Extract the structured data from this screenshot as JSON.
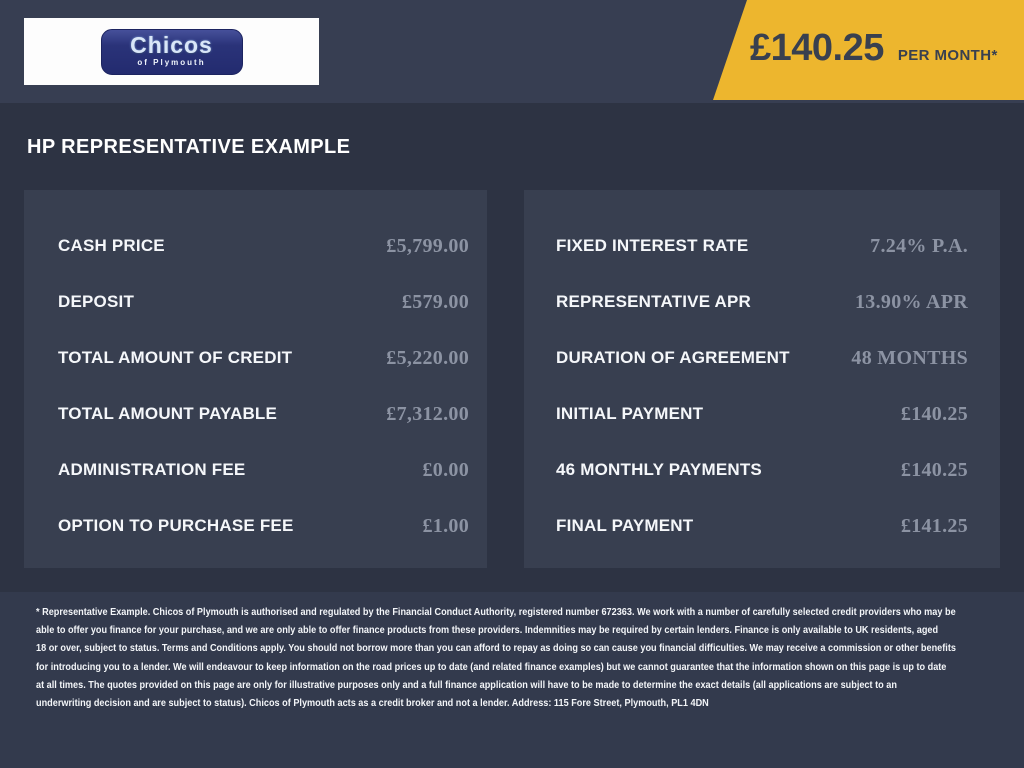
{
  "header": {
    "logo": {
      "name": "Chicos",
      "tagline": "of Plymouth"
    },
    "price_badge": {
      "amount": "£140.25",
      "per_label": "PER MONTH*"
    }
  },
  "page_title": "HP REPRESENTATIVE EXAMPLE",
  "panels": {
    "left": {
      "rows": [
        {
          "label": "CASH PRICE",
          "value": "£5,799.00"
        },
        {
          "label": "DEPOSIT",
          "value": "£579.00"
        },
        {
          "label": "TOTAL AMOUNT OF CREDIT",
          "value": "£5,220.00"
        },
        {
          "label": "TOTAL AMOUNT PAYABLE",
          "value": "£7,312.00"
        },
        {
          "label": "ADMINISTRATION FEE",
          "value": "£0.00"
        },
        {
          "label": "OPTION TO PURCHASE FEE",
          "value": "£1.00"
        }
      ]
    },
    "right": {
      "rows": [
        {
          "label": "FIXED INTEREST RATE",
          "value": "7.24% P.A."
        },
        {
          "label": "REPRESENTATIVE APR",
          "value": "13.90% APR"
        },
        {
          "label": "DURATION OF AGREEMENT",
          "value": "48 MONTHS"
        },
        {
          "label": "INITIAL PAYMENT",
          "value": "£140.25"
        },
        {
          "label": "46 MONTHLY PAYMENTS",
          "value": "£140.25"
        },
        {
          "label": "FINAL PAYMENT",
          "value": "£141.25"
        }
      ]
    }
  },
  "disclaimer": {
    "lines": [
      "* Representative Example. Chicos of Plymouth is authorised and regulated by the Financial Conduct Authority, registered number 672363. We work with a number of carefully selected credit providers who may be",
      "able to offer you finance for your purchase, and we are only able to offer finance products from these providers. Indemnities may be required by certain lenders. Finance is only available to UK residents, aged",
      "18 or over, subject to status. Terms and Conditions apply. You should not borrow more than you can afford to repay as doing so can cause you financial difficulties. We may receive a commission or other benefits",
      "for introducing you to a lender. We will endeavour to keep information on the road prices up to date (and related finance examples) but we cannot guarantee that the information shown on this page is up to date",
      "at all times. The quotes provided on this page are only for illustrative purposes only and a full finance application will have to be made to determine the exact details (all applications are subject to an",
      "underwriting decision and are subject to status). Chicos of Plymouth acts as a credit broker and not a lender. Address: 115 Fore Street, Plymouth, PL1 4DN"
    ]
  },
  "colors": {
    "header_bg": "#373E52",
    "body_bg": "#2D3343",
    "panel_bg": "#383F50",
    "footer_bg": "#333A4D",
    "badge_bg": "#EDB62E",
    "badge_text": "#39404F",
    "value_text": "#8C93A3",
    "logo_plate": "#2A3379"
  }
}
